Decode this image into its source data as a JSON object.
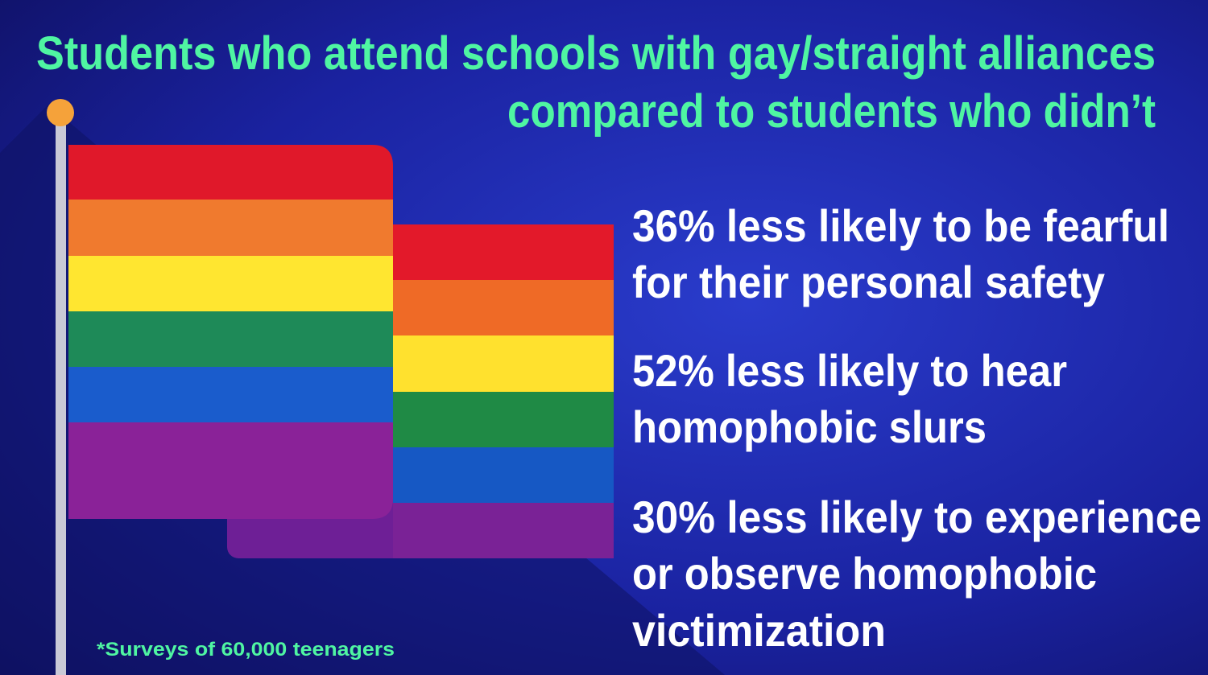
{
  "title": {
    "lines": [
      "Students who attend schools with gay/straight alliances",
      "compared to students who didn’t"
    ]
  },
  "stats": [
    {
      "lines": [
        "36% less likely to be fearful",
        "for their personal safety"
      ]
    },
    {
      "lines": [
        "52% less likely to hear",
        "homophobic slurs"
      ]
    },
    {
      "lines": [
        "30% less likely to experience",
        "or observe homophobic",
        "victimization"
      ]
    }
  ],
  "footnote": "*Surveys of 60,000 teenagers"
}
